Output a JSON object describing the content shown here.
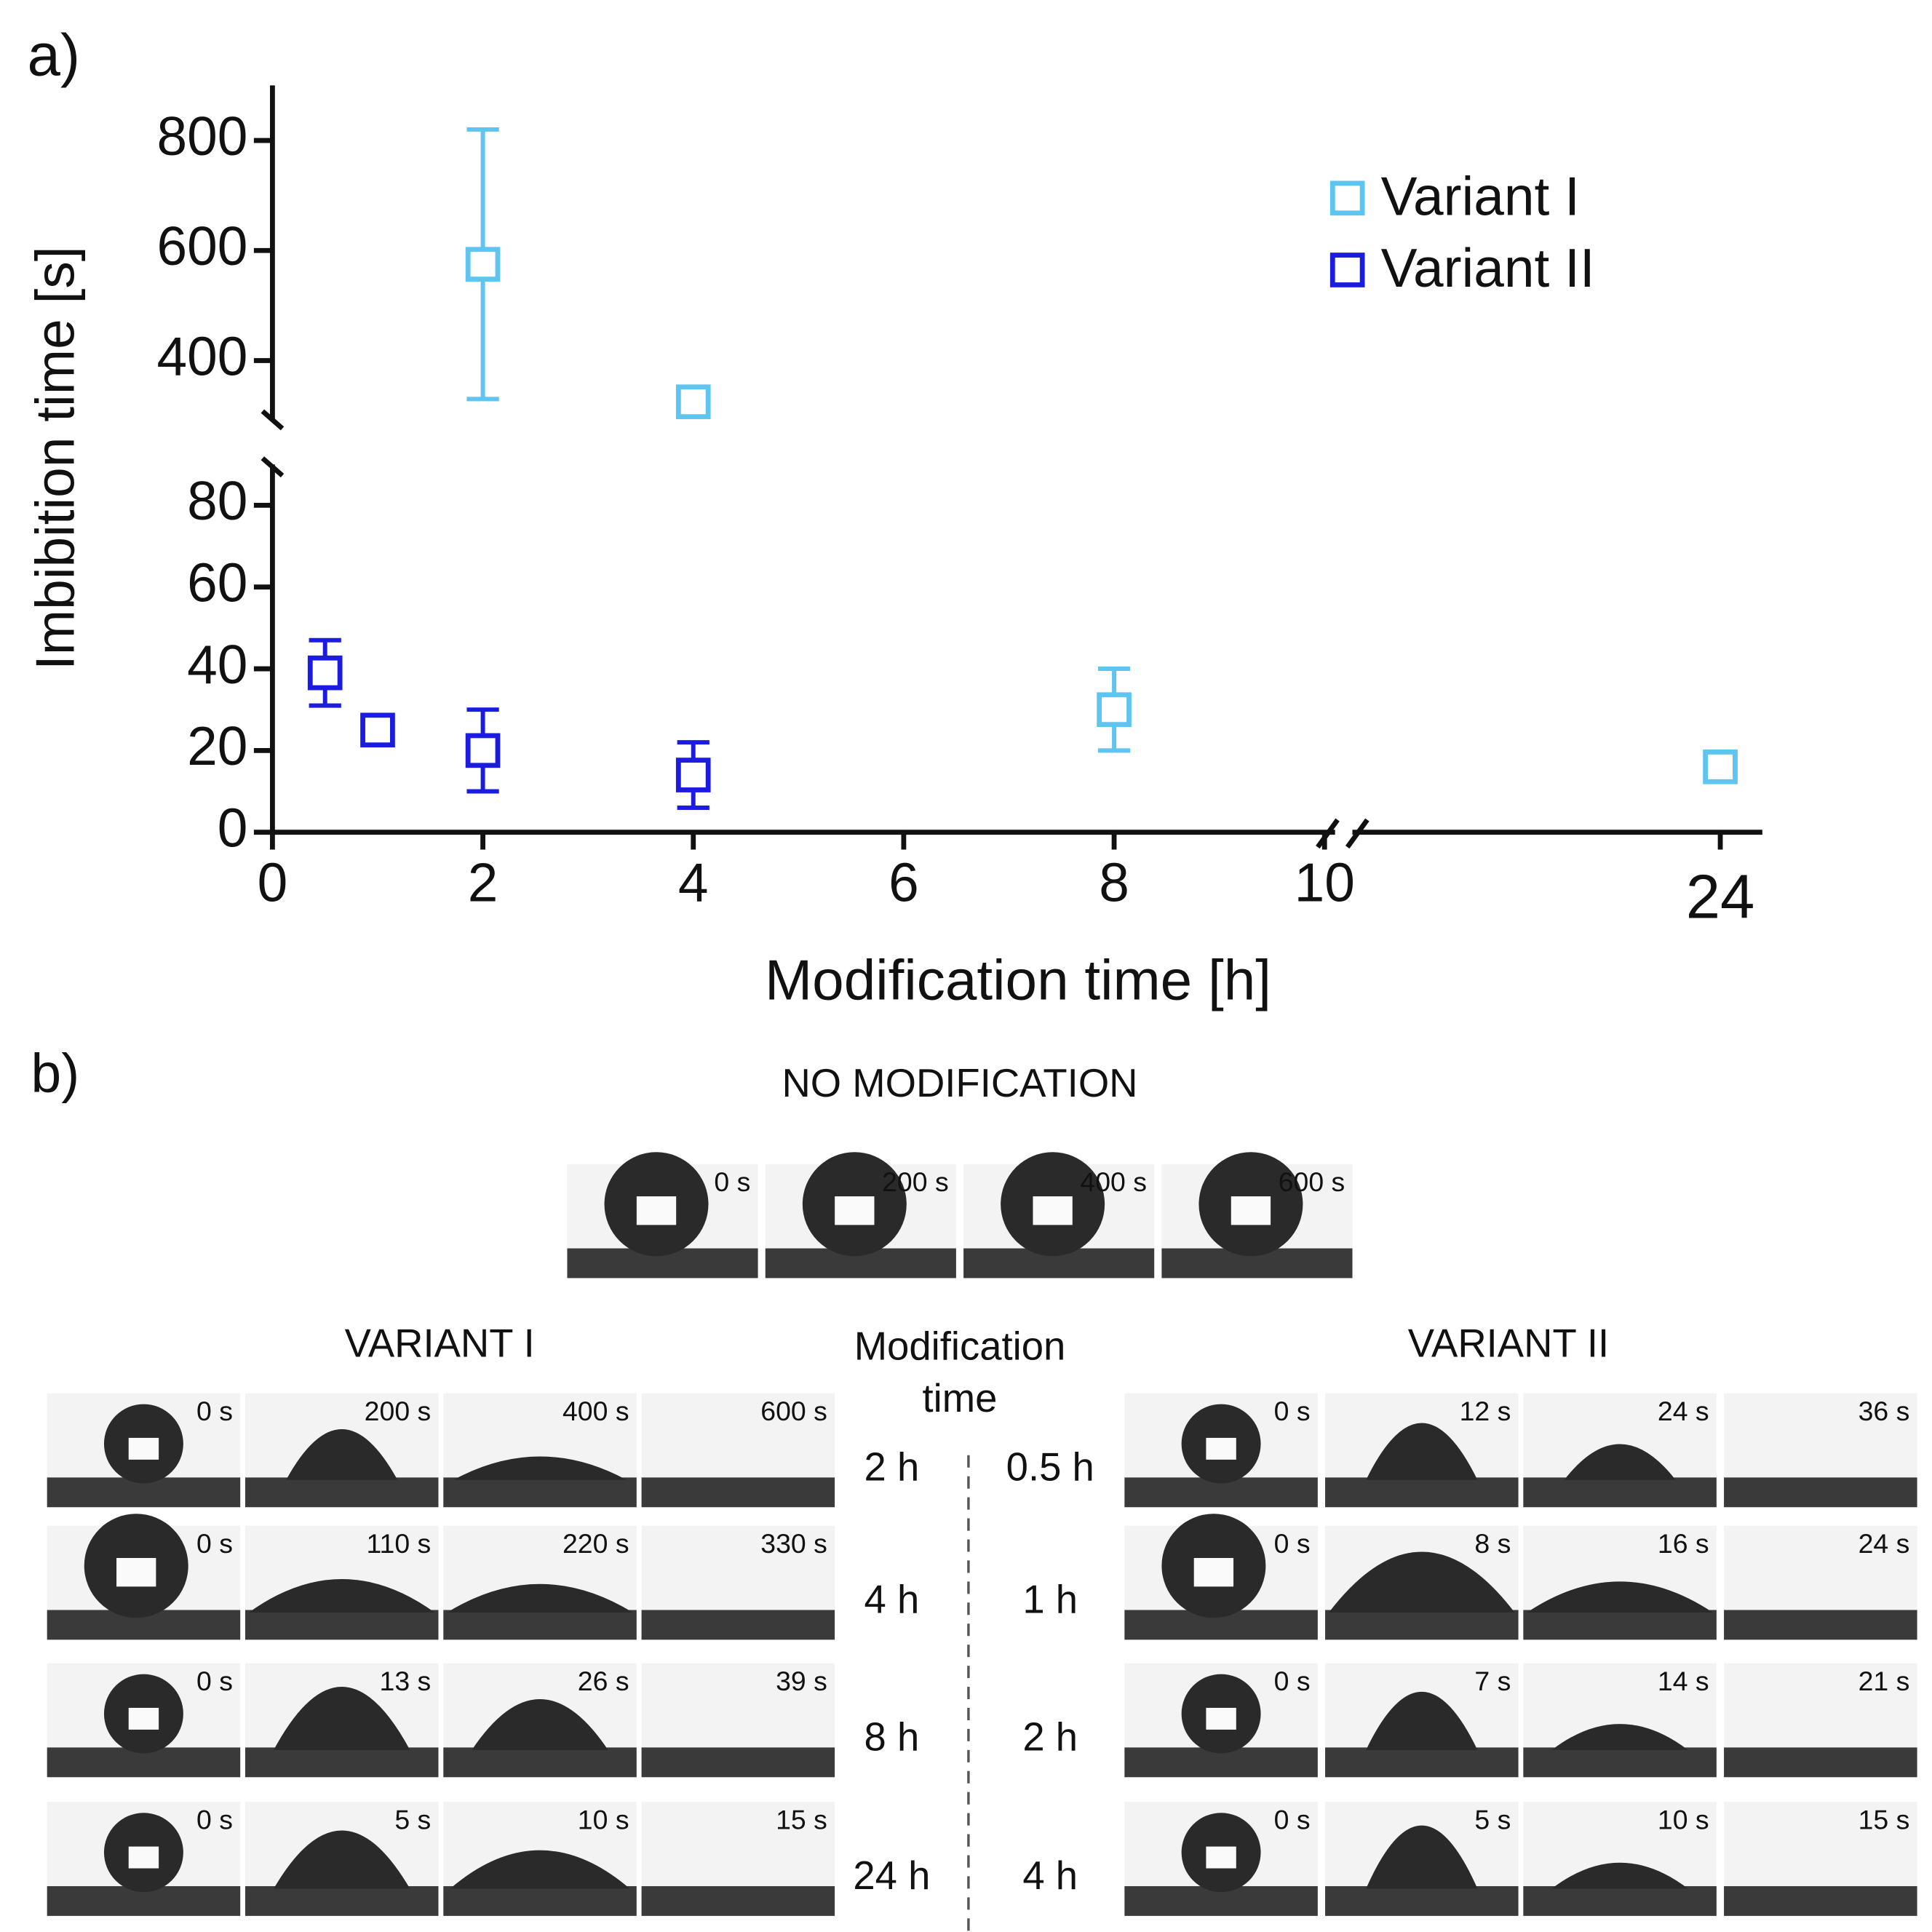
{
  "chart_data": {
    "type": "scatter",
    "panel_label": "a)",
    "xlabel": "Modification time [h]",
    "ylabel": "Imbibition time [s]",
    "x_segments": [
      {
        "xlim": [
          0,
          10.1
        ],
        "xticks": [
          0,
          2,
          4,
          6,
          8,
          10
        ]
      },
      {
        "xlim": [
          20.5,
          24.4
        ],
        "xticks": [
          24
        ]
      }
    ],
    "y_segments": [
      {
        "ylim": [
          0,
          90
        ],
        "yticks": [
          0,
          20,
          40,
          60,
          80
        ]
      },
      {
        "ylim": [
          290,
          900
        ],
        "yticks": [
          400,
          600,
          800
        ]
      }
    ],
    "legend": "upper right",
    "series": [
      {
        "name": "Variant I",
        "color": "#5ec4f0",
        "x": [
          2,
          4,
          8,
          24
        ],
        "values": [
          575,
          325,
          30,
          16
        ],
        "errors": [
          245,
          null,
          10,
          null
        ]
      },
      {
        "name": "Variant II",
        "color": "#1c1ce0",
        "x": [
          0.5,
          1,
          2,
          4
        ],
        "values": [
          39,
          25,
          20,
          14
        ],
        "errors": [
          8,
          null,
          10,
          8
        ]
      }
    ]
  },
  "panel_b": {
    "label": "b)",
    "no_modification": {
      "title": "NO MODIFICATION",
      "frames": [
        "0 s",
        "200 s",
        "400 s",
        "600 s"
      ]
    },
    "modification_time": "Modification time",
    "variant_1": {
      "title": "VARIANT I",
      "rows": [
        {
          "time": "2 h",
          "frames": [
            "0 s",
            "200 s",
            "400 s",
            "600 s"
          ]
        },
        {
          "time": "4 h",
          "frames": [
            "0 s",
            "110 s",
            "220 s",
            "330 s"
          ]
        },
        {
          "time": "8 h",
          "frames": [
            "0 s",
            "13 s",
            "26 s",
            "39 s"
          ]
        },
        {
          "time": "24 h",
          "frames": [
            "0 s",
            "5 s",
            "10 s",
            "15 s"
          ]
        }
      ]
    },
    "variant_2": {
      "title": "VARIANT II",
      "rows": [
        {
          "time": "0.5 h",
          "frames": [
            "0 s",
            "12 s",
            "24 s",
            "36 s"
          ]
        },
        {
          "time": "1 h",
          "frames": [
            "0 s",
            "8 s",
            "16 s",
            "24 s"
          ]
        },
        {
          "time": "2 h",
          "frames": [
            "0 s",
            "7 s",
            "14 s",
            "21 s"
          ]
        },
        {
          "time": "4 h",
          "frames": [
            "0 s",
            "5 s",
            "10 s",
            "15 s"
          ]
        }
      ]
    }
  }
}
